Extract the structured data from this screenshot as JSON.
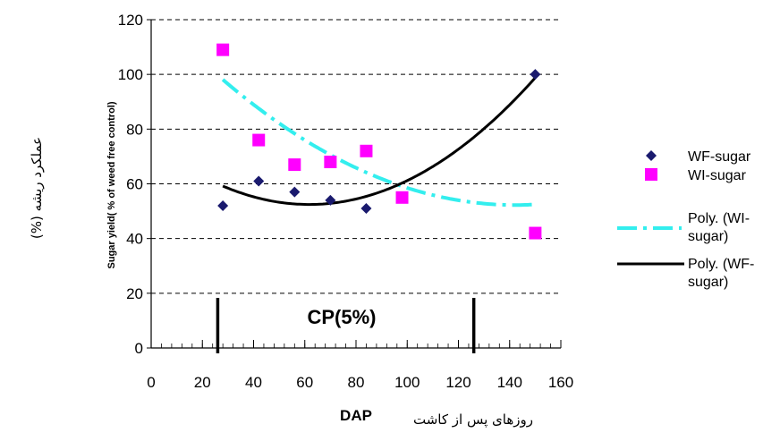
{
  "chart_data": {
    "type": "scatter",
    "xlabel": "DAP",
    "ylabel": "Sugar yield( % of weed free control)",
    "xlabel_persian": "روزهای پس از کاشت",
    "ylabel_persian": "عملکرد   ریشه   (%)",
    "xlim": [
      0,
      160
    ],
    "ylim": [
      0,
      120
    ],
    "xticks": [
      0,
      20,
      40,
      60,
      80,
      100,
      120,
      140,
      160
    ],
    "yticks": [
      0,
      20,
      40,
      60,
      80,
      100,
      120
    ],
    "grid": "horizontal dashed",
    "legend_position": "right",
    "series": [
      {
        "name": "WF-sugar",
        "kind": "points",
        "marker": "diamond",
        "color": "#1a1a6e",
        "x": [
          28,
          42,
          56,
          70,
          84,
          150
        ],
        "y": [
          52,
          61,
          57,
          54,
          51,
          100
        ]
      },
      {
        "name": "WI-sugar",
        "kind": "points",
        "marker": "square",
        "color": "#ff00ff",
        "x": [
          28,
          42,
          56,
          70,
          84,
          98,
          150
        ],
        "y": [
          109,
          76,
          67,
          68,
          72,
          55,
          42
        ]
      },
      {
        "name": "Poly. (WI-sugar)",
        "kind": "trend",
        "style": "dashed",
        "color": "#33eeee",
        "coef": [
          123.3,
          -0.9992,
          0.003513
        ]
      },
      {
        "name": "Poly. (WF-sugar)",
        "kind": "trend",
        "style": "solid",
        "color": "#000000",
        "coef": [
          75.05,
          -0.7326,
          0.005938
        ]
      }
    ],
    "trend_range": [
      28,
      150
    ],
    "annotation": {
      "text": "CP(5%)",
      "markers_x": [
        26,
        126
      ]
    }
  }
}
